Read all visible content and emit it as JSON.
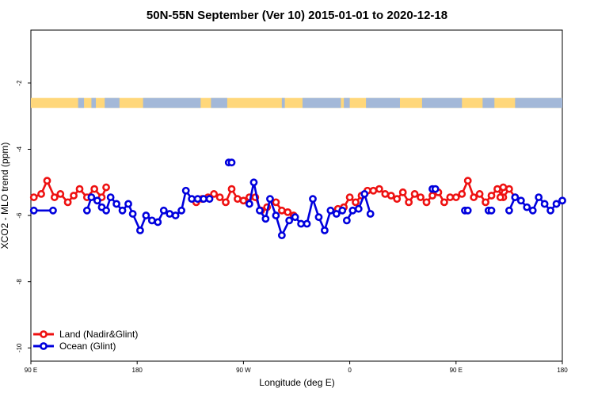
{
  "chart_data": {
    "type": "line",
    "title": "50N-55N September (Ver 10)   2015-01-01 to 2020-12-18",
    "xlabel": "Longitude (deg E)",
    "ylabel": "XCO2 - MLO trend (ppm)",
    "xlim": [
      90,
      450
    ],
    "ylim": [
      -10.4,
      -0.4
    ],
    "xticks": [
      {
        "value": 90,
        "label": "90 E"
      },
      {
        "value": 162,
        "label": "180"
      },
      {
        "value": 234,
        "label": "90 W"
      },
      {
        "value": 306,
        "label": "0"
      },
      {
        "value": 378,
        "label": "90 E"
      },
      {
        "value": 450,
        "label": "180"
      }
    ],
    "yticks": [
      {
        "value": -2,
        "label": "-2"
      },
      {
        "value": -4,
        "label": "-4"
      },
      {
        "value": -6,
        "label": "-6"
      },
      {
        "value": -8,
        "label": "-8"
      },
      {
        "value": -10,
        "label": "-10"
      }
    ],
    "legend_position": "bottom-left",
    "land_strip_y": [
      -2.45,
      -2.75
    ],
    "colors": {
      "land": "#ffd77a",
      "ocean": "#a3b8d8",
      "land_series": "#ee1111",
      "ocean_series": "#0000dd"
    },
    "series": [
      {
        "name": "Land (Nadir&Glint)",
        "color": "#ee1111",
        "x": [
          92,
          97,
          101,
          106,
          110,
          115,
          119,
          123,
          128,
          133,
          138,
          141
        ],
        "y": [
          -5.45,
          -5.35,
          -4.95,
          -5.45,
          -5.35,
          -5.6,
          -5.4,
          -5.2,
          -5.45,
          -5.2,
          -5.45,
          -5.15
        ],
        "x2": [
          202,
          206,
          210,
          214,
          218,
          222,
          226,
          230,
          234,
          238,
          242,
          246,
          250
        ],
        "y2": [
          -5.6,
          -5.5,
          -5.45,
          -5.35,
          -5.45,
          -5.6,
          -5.2,
          -5.5,
          -5.55,
          -5.45,
          -5.45,
          -5.85,
          -5.75
        ],
        "x3": [
          256,
          260,
          264,
          268
        ],
        "y3": [
          -5.6,
          -5.85,
          -5.9,
          -6.0
        ],
        "x4": [
          298,
          302,
          306,
          310,
          314,
          318,
          322,
          326,
          330,
          334,
          338,
          342,
          346,
          350,
          354,
          358,
          362,
          366,
          370,
          374,
          378,
          382,
          386,
          390,
          394,
          398,
          402,
          406,
          410,
          414,
          418
        ],
        "y4": [
          -5.8,
          -5.75,
          -5.45,
          -5.6,
          -5.4,
          -5.25,
          -5.25,
          -5.2,
          -5.35,
          -5.4,
          -5.5,
          -5.3,
          -5.6,
          -5.35,
          -5.45,
          -5.6,
          -5.4,
          -5.3,
          -5.6,
          -5.45,
          -5.45,
          -5.35,
          -4.95,
          -5.45,
          -5.35,
          -5.6,
          -5.4,
          -5.2,
          -5.45,
          -5.2,
          -5.45
        ],
        "x5": [
          408,
          410
        ],
        "y5": [
          -5.45,
          -5.15
        ]
      },
      {
        "name": "Ocean (Glint)",
        "color": "#0000dd",
        "x": [
          92,
          105
        ],
        "y": [
          -5.85,
          -5.85
        ],
        "x2": [
          128,
          131,
          135,
          138,
          141,
          144,
          148,
          152,
          156,
          159,
          164,
          168,
          172,
          176,
          180,
          184,
          188,
          192,
          195,
          199,
          203,
          207,
          211
        ],
        "y2": [
          -5.85,
          -5.45,
          -5.55,
          -5.75,
          -5.85,
          -5.45,
          -5.65,
          -5.85,
          -5.65,
          -5.95,
          -6.45,
          -6.0,
          -6.15,
          -6.2,
          -5.85,
          -5.95,
          -6.0,
          -5.85,
          -5.25,
          -5.5,
          -5.5,
          -5.5,
          -5.5
        ],
        "x3": [
          224,
          226
        ],
        "y3": [
          -4.4,
          -4.4
        ],
        "x4": [
          238,
          241,
          245,
          249,
          252,
          256,
          260,
          265,
          269,
          273,
          277,
          281,
          285,
          289,
          293,
          297,
          301
        ],
        "y4": [
          -5.65,
          -5.0,
          -5.85,
          -6.1,
          -5.5,
          -6.0,
          -6.6,
          -6.15,
          -6.05,
          -6.25,
          -6.25,
          -5.5,
          -6.05,
          -6.45,
          -5.85,
          -5.95,
          -5.85
        ],
        "x5": [
          304,
          308,
          312,
          316,
          320
        ],
        "y5": [
          -6.15,
          -5.85,
          -5.8,
          -5.35,
          -5.95
        ],
        "x6": [
          362,
          364
        ],
        "y6": [
          -5.2,
          -5.2
        ],
        "x7": [
          384,
          386
        ],
        "y7": [
          -5.85,
          -5.85
        ],
        "x8": [
          400,
          402
        ],
        "y8": [
          -5.85,
          -5.85
        ],
        "x9": [
          414,
          418,
          422,
          426,
          430,
          434,
          438,
          442,
          446,
          450
        ],
        "y9": [
          -5.85,
          -5.45,
          -5.55,
          -5.75,
          -5.85,
          -5.45,
          -5.65,
          -5.85,
          -5.65,
          -5.55
        ]
      }
    ]
  }
}
